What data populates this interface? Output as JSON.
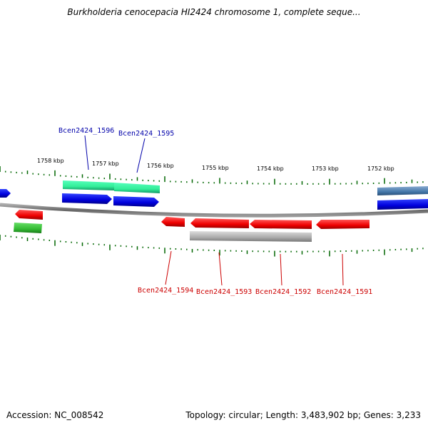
{
  "title": "Burkholderia cenocepacia HI2424 chromosome 1, complete seque...",
  "footer": {
    "accession": "Accession: NC_008542",
    "summary": "Topology: circular; Length: 3,483,902 bp; Genes: 3,233"
  },
  "scale_labels": [
    "1758 kbp",
    "1757 kbp",
    "1756 kbp",
    "1755 kbp",
    "1754 kbp",
    "1753 kbp",
    "1752 kbp"
  ],
  "gene_labels_top": [
    "Bcen2424_1596",
    "Bcen2424_1595"
  ],
  "gene_labels_bottom": [
    "Bcen2424_1594",
    "Bcen2424_1593",
    "Bcen2424_1592",
    "Bcen2424_1591"
  ],
  "colors": {
    "label_top": "#0000aa",
    "label_bottom": "#cc0000",
    "gene_blue": "#0000dd",
    "gene_teal": "#33ee99",
    "gene_red": "#ee0000",
    "gene_green": "#33bb33",
    "gene_steel": "#4477aa",
    "gene_grey": "#aaaaaa",
    "tick": "#006600",
    "backbone": "#777777"
  }
}
